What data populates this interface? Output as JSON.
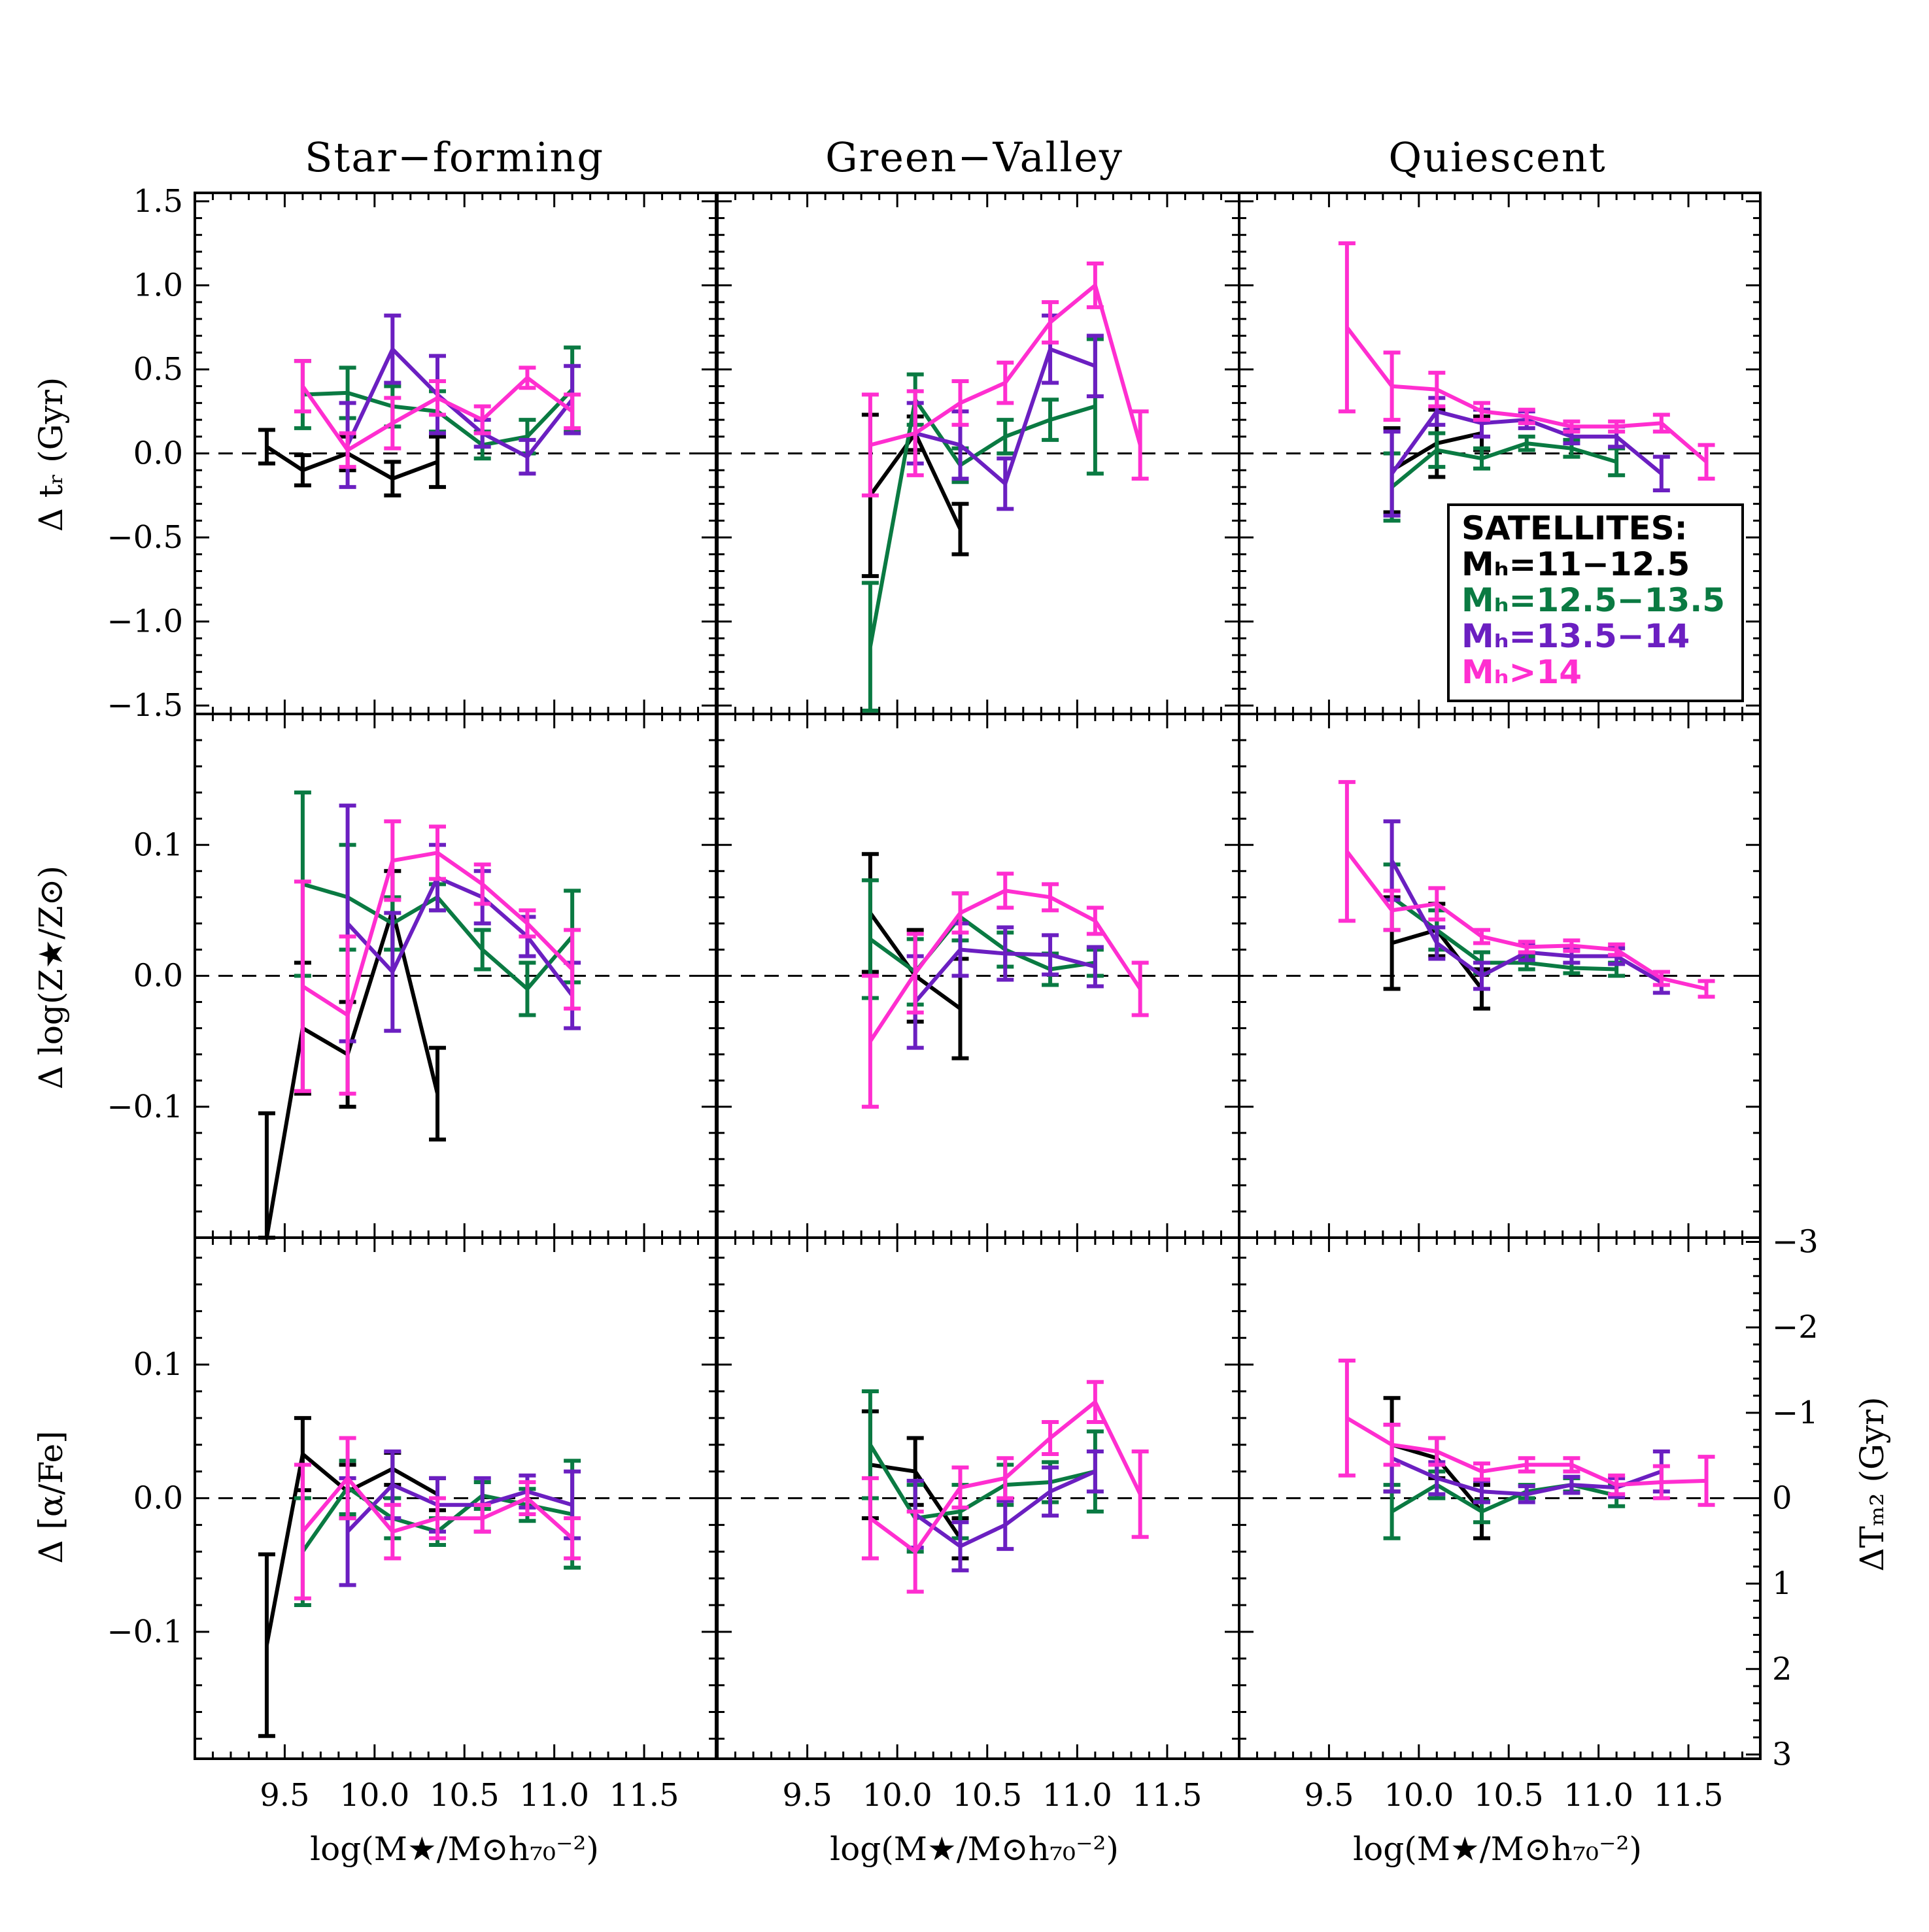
{
  "colors": {
    "black": "#000000",
    "green": "#0a7a42",
    "purple": "#6b1fc1",
    "magenta": "#ff2ed0"
  },
  "column_titles": [
    "Star−forming",
    "Green−Valley",
    "Quiescent"
  ],
  "xaxis": {
    "label": "log(M★/M⊙h₇₀⁻²)",
    "ticks": [
      9.5,
      10.0,
      10.5,
      11.0,
      11.5
    ],
    "tick_labels": [
      "9.5",
      "10.0",
      "10.5",
      "11.0",
      "11.5"
    ],
    "range": [
      9.0,
      11.9
    ]
  },
  "legend": {
    "title": "SATELLITES:",
    "entries": [
      {
        "label": "Mₕ=11−12.5",
        "color": "#000000"
      },
      {
        "label": "Mₕ=12.5−13.5",
        "color": "#0a7a42"
      },
      {
        "label": "Mₕ=13.5−14",
        "color": "#6b1fc1"
      },
      {
        "label": "Mₕ>14",
        "color": "#ff2ed0"
      }
    ]
  },
  "right_axis": {
    "label": "ΔTₘ₂ (Gyr)",
    "ticks": [
      "−3",
      "−2",
      "−1",
      "0",
      "1",
      "2",
      "3"
    ]
  },
  "chart_data": [
    {
      "type": "line",
      "row": 0,
      "col": 0,
      "title": "Star−forming",
      "ylabel": "Δ tᵣ (Gyr)",
      "ylim": [
        -1.55,
        1.55
      ],
      "yticks": [
        -1.5,
        -1.0,
        -0.5,
        0.0,
        0.5,
        1.0,
        1.5
      ],
      "ytick_labels": [
        "−1.5",
        "−1.0",
        "−0.5",
        "0.0",
        "0.5",
        "1.0",
        "1.5"
      ],
      "series": [
        {
          "color": "black",
          "x": [
            9.4,
            9.6,
            9.85,
            10.1,
            10.35
          ],
          "y": [
            0.04,
            -0.1,
            0.0,
            -0.15,
            -0.05
          ],
          "err": [
            0.1,
            0.09,
            0.1,
            0.1,
            0.15
          ]
        },
        {
          "color": "green",
          "x": [
            9.6,
            9.85,
            10.1,
            10.35,
            10.6,
            10.85,
            11.1
          ],
          "y": [
            0.35,
            0.36,
            0.28,
            0.25,
            0.05,
            0.1,
            0.38
          ],
          "err": [
            0.2,
            0.15,
            0.12,
            0.12,
            0.08,
            0.1,
            0.25
          ]
        },
        {
          "color": "purple",
          "x": [
            9.85,
            10.1,
            10.35,
            10.6,
            10.85,
            11.1
          ],
          "y": [
            0.05,
            0.62,
            0.35,
            0.12,
            -0.02,
            0.32
          ],
          "err": [
            0.25,
            0.2,
            0.23,
            0.08,
            0.1,
            0.2
          ]
        },
        {
          "color": "magenta",
          "x": [
            9.6,
            9.85,
            10.1,
            10.35,
            10.6,
            10.85,
            11.1
          ],
          "y": [
            0.4,
            0.02,
            0.18,
            0.33,
            0.2,
            0.45,
            0.25
          ],
          "err": [
            0.15,
            0.1,
            0.15,
            0.1,
            0.08,
            0.06,
            0.1
          ]
        }
      ]
    },
    {
      "type": "line",
      "row": 0,
      "col": 1,
      "title": "Green−Valley",
      "ylim": [
        -1.55,
        1.55
      ],
      "series": [
        {
          "color": "black",
          "x": [
            9.85,
            10.1,
            10.35
          ],
          "y": [
            -0.25,
            0.12,
            -0.45
          ],
          "err": [
            0.48,
            0.1,
            0.15
          ]
        },
        {
          "color": "green",
          "x": [
            9.85,
            10.1,
            10.35,
            10.6,
            10.85,
            11.1
          ],
          "y": [
            -1.15,
            0.32,
            -0.07,
            0.1,
            0.2,
            0.28
          ],
          "err": [
            0.38,
            0.15,
            0.1,
            0.1,
            0.12,
            0.4
          ]
        },
        {
          "color": "purple",
          "x": [
            10.1,
            10.35,
            10.6,
            10.85,
            11.1
          ],
          "y": [
            0.12,
            0.05,
            -0.18,
            0.62,
            0.52
          ],
          "err": [
            0.18,
            0.2,
            0.15,
            0.2,
            0.18
          ]
        },
        {
          "color": "magenta",
          "x": [
            9.85,
            10.1,
            10.35,
            10.6,
            10.85,
            11.1,
            11.35
          ],
          "y": [
            0.05,
            0.12,
            0.3,
            0.42,
            0.78,
            1.0,
            0.05
          ],
          "err": [
            0.3,
            0.25,
            0.13,
            0.12,
            0.12,
            0.13,
            0.2
          ]
        }
      ]
    },
    {
      "type": "line",
      "row": 0,
      "col": 2,
      "title": "Quiescent",
      "ylim": [
        -1.55,
        1.55
      ],
      "series": [
        {
          "color": "black",
          "x": [
            9.85,
            10.1,
            10.35
          ],
          "y": [
            -0.1,
            0.06,
            0.12
          ],
          "err": [
            0.25,
            0.2,
            0.1
          ]
        },
        {
          "color": "green",
          "x": [
            9.85,
            10.1,
            10.35,
            10.6,
            10.85,
            11.1
          ],
          "y": [
            -0.2,
            0.02,
            -0.03,
            0.06,
            0.03,
            -0.05
          ],
          "err": [
            0.2,
            0.1,
            0.06,
            0.04,
            0.05,
            0.08
          ]
        },
        {
          "color": "purple",
          "x": [
            9.85,
            10.1,
            10.35,
            10.6,
            10.85,
            11.1,
            11.35
          ],
          "y": [
            -0.12,
            0.25,
            0.18,
            0.2,
            0.1,
            0.1,
            -0.12
          ],
          "err": [
            0.25,
            0.08,
            0.08,
            0.05,
            0.04,
            0.06,
            0.1
          ]
        },
        {
          "color": "magenta",
          "x": [
            9.6,
            9.85,
            10.1,
            10.35,
            10.6,
            10.85,
            11.1,
            11.35,
            11.6
          ],
          "y": [
            0.75,
            0.4,
            0.38,
            0.25,
            0.22,
            0.16,
            0.16,
            0.18,
            -0.05
          ],
          "err": [
            0.5,
            0.2,
            0.1,
            0.05,
            0.04,
            0.03,
            0.03,
            0.05,
            0.1
          ]
        }
      ]
    },
    {
      "type": "line",
      "row": 1,
      "col": 0,
      "ylabel": "Δ log(Z★/Z⊙)",
      "ylim": [
        -0.2,
        0.2
      ],
      "yticks": [
        -0.1,
        0.0,
        0.1
      ],
      "ytick_labels": [
        "−0.1",
        "0.0",
        "0.1"
      ],
      "series": [
        {
          "color": "black",
          "x": [
            9.4,
            9.6,
            9.85,
            10.1,
            10.35
          ],
          "y": [
            -0.2,
            -0.04,
            -0.06,
            0.05,
            -0.09
          ],
          "err": [
            0.095,
            0.05,
            0.04,
            0.03,
            0.035
          ]
        },
        {
          "color": "green",
          "x": [
            9.6,
            9.85,
            10.1,
            10.35,
            10.6,
            10.85,
            11.1
          ],
          "y": [
            0.07,
            0.06,
            0.04,
            0.06,
            0.02,
            -0.01,
            0.03
          ],
          "err": [
            0.07,
            0.04,
            0.02,
            0.01,
            0.015,
            0.02,
            0.035
          ]
        },
        {
          "color": "purple",
          "x": [
            9.85,
            10.1,
            10.35,
            10.6,
            10.85,
            11.1
          ],
          "y": [
            0.04,
            0.003,
            0.075,
            0.06,
            0.03,
            -0.015
          ],
          "err": [
            0.09,
            0.045,
            0.025,
            0.02,
            0.015,
            0.025
          ]
        },
        {
          "color": "magenta",
          "x": [
            9.6,
            9.85,
            10.1,
            10.35,
            10.6,
            10.85,
            11.1
          ],
          "y": [
            -0.008,
            -0.03,
            0.088,
            0.094,
            0.07,
            0.04,
            0.005
          ],
          "err": [
            0.08,
            0.06,
            0.03,
            0.02,
            0.015,
            0.01,
            0.03
          ]
        }
      ]
    },
    {
      "type": "line",
      "row": 1,
      "col": 1,
      "ylim": [
        -0.2,
        0.2
      ],
      "series": [
        {
          "color": "black",
          "x": [
            9.85,
            10.1,
            10.35
          ],
          "y": [
            0.048,
            0.0,
            -0.025
          ],
          "err": [
            0.045,
            0.035,
            0.038
          ]
        },
        {
          "color": "green",
          "x": [
            9.85,
            10.1,
            10.35,
            10.6,
            10.85,
            11.1
          ],
          "y": [
            0.028,
            0.003,
            0.045,
            0.02,
            0.005,
            0.01
          ],
          "err": [
            0.045,
            0.025,
            0.018,
            0.013,
            0.012,
            0.01
          ]
        },
        {
          "color": "purple",
          "x": [
            10.1,
            10.35,
            10.6,
            10.85,
            11.1
          ],
          "y": [
            -0.02,
            0.02,
            0.017,
            0.016,
            0.007
          ],
          "err": [
            0.035,
            0.02,
            0.02,
            0.015,
            0.015
          ]
        },
        {
          "color": "magenta",
          "x": [
            9.85,
            10.1,
            10.35,
            10.6,
            10.85,
            11.1,
            11.35
          ],
          "y": [
            -0.05,
            0.002,
            0.048,
            0.065,
            0.06,
            0.042,
            -0.01
          ],
          "err": [
            0.05,
            0.03,
            0.015,
            0.013,
            0.01,
            0.01,
            0.02
          ]
        }
      ]
    },
    {
      "type": "line",
      "row": 1,
      "col": 2,
      "ylim": [
        -0.2,
        0.2
      ],
      "series": [
        {
          "color": "black",
          "x": [
            9.85,
            10.1,
            10.35
          ],
          "y": [
            0.025,
            0.035,
            -0.01
          ],
          "err": [
            0.035,
            0.02,
            0.015
          ]
        },
        {
          "color": "green",
          "x": [
            9.85,
            10.1,
            10.35,
            10.6,
            10.85,
            11.1
          ],
          "y": [
            0.06,
            0.035,
            0.01,
            0.01,
            0.006,
            0.005
          ],
          "err": [
            0.025,
            0.015,
            0.008,
            0.005,
            0.004,
            0.005
          ]
        },
        {
          "color": "purple",
          "x": [
            9.85,
            10.1,
            10.35,
            10.6,
            10.85,
            11.1,
            11.35
          ],
          "y": [
            0.088,
            0.025,
            0.0,
            0.018,
            0.015,
            0.015,
            -0.005
          ],
          "err": [
            0.03,
            0.012,
            0.01,
            0.006,
            0.005,
            0.006,
            0.008
          ]
        },
        {
          "color": "magenta",
          "x": [
            9.6,
            9.85,
            10.1,
            10.35,
            10.6,
            10.85,
            11.1,
            11.35,
            11.6
          ],
          "y": [
            0.095,
            0.05,
            0.055,
            0.03,
            0.022,
            0.023,
            0.02,
            -0.002,
            -0.01
          ],
          "err": [
            0.053,
            0.015,
            0.012,
            0.005,
            0.004,
            0.004,
            0.004,
            0.005,
            0.006
          ]
        }
      ]
    },
    {
      "type": "line",
      "row": 2,
      "col": 0,
      "ylabel": "Δ [α/Fe]",
      "ylim": [
        -0.195,
        0.195
      ],
      "yticks": [
        -0.1,
        0.0,
        0.1
      ],
      "ytick_labels": [
        "−0.1",
        "0.0",
        "0.1"
      ],
      "series": [
        {
          "color": "black",
          "x": [
            9.4,
            9.6,
            9.85,
            10.1,
            10.35
          ],
          "y": [
            -0.11,
            0.033,
            0.005,
            0.022,
            0.003
          ],
          "err": [
            0.068,
            0.027,
            0.02,
            0.012,
            0.012
          ]
        },
        {
          "color": "green",
          "x": [
            9.6,
            9.85,
            10.1,
            10.35,
            10.6,
            10.85,
            11.1
          ],
          "y": [
            -0.04,
            0.008,
            -0.015,
            -0.025,
            0.002,
            -0.005,
            -0.012
          ],
          "err": [
            0.04,
            0.02,
            0.015,
            0.01,
            0.01,
            0.012,
            0.04
          ]
        },
        {
          "color": "purple",
          "x": [
            9.85,
            10.1,
            10.35,
            10.6,
            10.85,
            11.1
          ],
          "y": [
            -0.025,
            0.01,
            -0.005,
            -0.005,
            0.005,
            -0.005
          ],
          "err": [
            0.04,
            0.025,
            0.02,
            0.02,
            0.012,
            0.025
          ]
        },
        {
          "color": "magenta",
          "x": [
            9.6,
            9.85,
            10.1,
            10.35,
            10.6,
            10.85,
            11.1
          ],
          "y": [
            -0.025,
            0.015,
            -0.025,
            -0.015,
            -0.015,
            0.0,
            -0.03
          ],
          "err": [
            0.05,
            0.03,
            0.02,
            0.015,
            0.01,
            0.012,
            0.015
          ]
        }
      ]
    },
    {
      "type": "line",
      "row": 2,
      "col": 1,
      "ylim": [
        -0.195,
        0.195
      ],
      "series": [
        {
          "color": "black",
          "x": [
            9.85,
            10.1,
            10.35
          ],
          "y": [
            0.025,
            0.02,
            -0.03
          ],
          "err": [
            0.04,
            0.025,
            0.015
          ]
        },
        {
          "color": "green",
          "x": [
            9.85,
            10.1,
            10.35,
            10.6,
            10.85,
            11.1
          ],
          "y": [
            0.04,
            -0.015,
            -0.01,
            0.01,
            0.012,
            0.02
          ],
          "err": [
            0.04,
            0.025,
            0.02,
            0.015,
            0.015,
            0.03
          ]
        },
        {
          "color": "purple",
          "x": [
            10.1,
            10.35,
            10.6,
            10.85,
            11.1
          ],
          "y": [
            -0.012,
            -0.036,
            -0.02,
            0.005,
            0.02
          ],
          "err": [
            0.025,
            0.018,
            0.018,
            0.018,
            0.015
          ]
        },
        {
          "color": "magenta",
          "x": [
            9.85,
            10.1,
            10.35,
            10.6,
            10.85,
            11.1,
            11.35
          ],
          "y": [
            -0.015,
            -0.04,
            0.008,
            0.015,
            0.045,
            0.072,
            0.003
          ],
          "err": [
            0.03,
            0.03,
            0.015,
            0.015,
            0.012,
            0.015,
            0.032
          ]
        }
      ]
    },
    {
      "type": "line",
      "row": 2,
      "col": 2,
      "ylim": [
        -0.195,
        0.195
      ],
      "y2label": "ΔTₘ₂ (Gyr)",
      "y2lim": [
        3.05,
        -3.05
      ],
      "series": [
        {
          "color": "black",
          "x": [
            9.85,
            10.1,
            10.35
          ],
          "y": [
            0.04,
            0.03,
            -0.01
          ],
          "err": [
            0.035,
            0.015,
            0.02
          ]
        },
        {
          "color": "green",
          "x": [
            9.85,
            10.1,
            10.35,
            10.6,
            10.85,
            11.1
          ],
          "y": [
            -0.01,
            0.01,
            -0.01,
            0.005,
            0.01,
            0.002
          ],
          "err": [
            0.02,
            0.01,
            0.008,
            0.005,
            0.005,
            0.008
          ]
        },
        {
          "color": "purple",
          "x": [
            9.85,
            10.1,
            10.35,
            10.6,
            10.85,
            11.1,
            11.35
          ],
          "y": [
            0.03,
            0.015,
            0.005,
            0.003,
            0.01,
            0.008,
            0.02
          ],
          "err": [
            0.025,
            0.012,
            0.008,
            0.006,
            0.006,
            0.007,
            0.015
          ]
        },
        {
          "color": "magenta",
          "x": [
            9.6,
            9.85,
            10.1,
            10.35,
            10.6,
            10.85,
            11.1,
            11.35,
            11.6
          ],
          "y": [
            0.06,
            0.04,
            0.035,
            0.02,
            0.025,
            0.025,
            0.01,
            0.012,
            0.013
          ],
          "err": [
            0.043,
            0.015,
            0.01,
            0.006,
            0.005,
            0.005,
            0.007,
            0.012,
            0.018
          ]
        }
      ]
    }
  ]
}
